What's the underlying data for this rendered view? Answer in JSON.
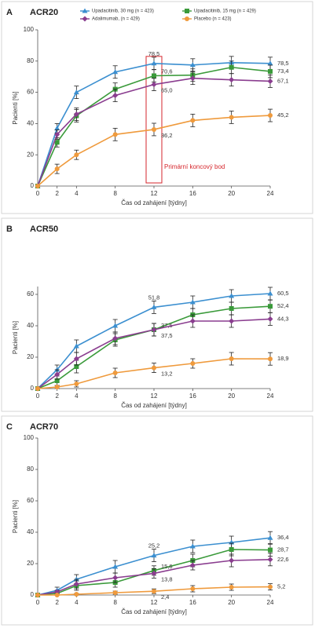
{
  "chart_data": [
    {
      "type": "line",
      "panel_label": "A",
      "title": "ACR20",
      "x_label": "Čas od zahájení [týdny]",
      "y_label": "Pacienti [%]",
      "annotation": "Primární koncový bod",
      "x": [
        0,
        2,
        4,
        8,
        12,
        16,
        20,
        24
      ],
      "xlim": [
        0,
        24
      ],
      "xticks": [
        0,
        2,
        4,
        8,
        12,
        16,
        20,
        24
      ],
      "ylim": [
        0,
        100
      ],
      "yticks": [
        0,
        20,
        40,
        60,
        80,
        100
      ],
      "series": [
        {
          "name": "Upadacitinib, 30 mg (n = 423)",
          "color": "#3b8fd0",
          "marker": "triangle",
          "values": [
            0,
            37,
            60,
            73,
            78.5,
            77.5,
            79,
            78.5
          ],
          "errors": [
            0,
            3,
            4,
            4,
            4,
            4,
            4,
            4
          ],
          "value_labels": [
            null,
            null,
            null,
            null,
            "78,5",
            null,
            null,
            "78,5"
          ]
        },
        {
          "name": "Upadacitinib, 15 mg (n = 429)",
          "color": "#3a9a3a",
          "marker": "square",
          "values": [
            0,
            28,
            45,
            62,
            70.6,
            71,
            76,
            73.4
          ],
          "errors": [
            0,
            3,
            4,
            4,
            4,
            4,
            4,
            4
          ],
          "value_labels": [
            null,
            null,
            null,
            null,
            "70,6",
            null,
            null,
            "73,4"
          ]
        },
        {
          "name": "Adalimumab, (n = 429)",
          "color": "#8a3d8f",
          "marker": "diamond",
          "values": [
            0,
            33,
            46,
            58,
            65.0,
            69,
            68,
            67.1
          ],
          "errors": [
            0,
            3,
            4,
            4,
            4,
            4,
            4,
            4
          ],
          "value_labels": [
            null,
            null,
            null,
            null,
            "65,0",
            null,
            null,
            "67,1"
          ]
        },
        {
          "name": "Placebo (n = 423)",
          "color": "#ef9a3c",
          "marker": "circle",
          "values": [
            0,
            11,
            20,
            33,
            36.2,
            42,
            44,
            45.2
          ],
          "errors": [
            0,
            3,
            3,
            4,
            4,
            4,
            4,
            4
          ],
          "value_labels": [
            null,
            null,
            null,
            null,
            "36,2",
            null,
            null,
            "45,2"
          ]
        }
      ]
    },
    {
      "type": "line",
      "panel_label": "B",
      "title": "ACR50",
      "x_label": "Čas od zahájení [týdny]",
      "y_label": "Pacienti [%]",
      "x": [
        0,
        2,
        4,
        8,
        12,
        16,
        20,
        24
      ],
      "xlim": [
        0,
        24
      ],
      "xticks": [
        0,
        2,
        4,
        8,
        12,
        16,
        20,
        24
      ],
      "ylim": [
        0,
        65
      ],
      "yticks": [
        0,
        20,
        40,
        60
      ],
      "series": [
        {
          "color": "#3b8fd0",
          "marker": "triangle",
          "values": [
            0,
            12,
            27,
            40,
            51.8,
            55,
            59,
            60.5
          ],
          "errors": [
            0,
            3,
            4,
            4,
            4,
            4,
            4,
            4
          ],
          "value_labels": [
            null,
            null,
            null,
            null,
            "51,8",
            null,
            null,
            "60,5"
          ]
        },
        {
          "color": "#3a9a3a",
          "marker": "square",
          "values": [
            0,
            5,
            14,
            31,
            37.5,
            47,
            51,
            52.4
          ],
          "errors": [
            0,
            3,
            4,
            4,
            4,
            4,
            4,
            4
          ],
          "value_labels": [
            null,
            null,
            null,
            null,
            "37,5",
            null,
            null,
            "52,4"
          ]
        },
        {
          "color": "#8a3d8f",
          "marker": "diamond",
          "values": [
            0,
            9,
            19,
            32,
            37.5,
            43,
            43,
            44.3
          ],
          "errors": [
            0,
            3,
            4,
            4,
            4,
            4,
            4,
            4
          ],
          "value_labels": [
            null,
            null,
            null,
            null,
            "37,5",
            null,
            null,
            "44,3"
          ]
        },
        {
          "color": "#ef9a3c",
          "marker": "circle",
          "values": [
            0,
            1,
            3,
            10,
            13.2,
            16,
            19,
            18.9
          ],
          "errors": [
            0,
            1,
            2,
            3,
            3,
            3,
            4,
            4
          ],
          "value_labels": [
            null,
            null,
            null,
            null,
            "13,2",
            null,
            null,
            "18,9"
          ]
        }
      ]
    },
    {
      "type": "line",
      "panel_label": "C",
      "title": "ACR70",
      "x_label": "Čas od zahájení [týdny]",
      "y_label": "Pacienti [%]",
      "x": [
        0,
        2,
        4,
        8,
        12,
        16,
        20,
        24
      ],
      "xlim": [
        0,
        24
      ],
      "xticks": [
        0,
        2,
        4,
        8,
        12,
        16,
        20,
        24
      ],
      "ylim": [
        0,
        100
      ],
      "yticks": [
        0,
        20,
        40,
        60,
        80,
        100
      ],
      "series": [
        {
          "color": "#3b8fd0",
          "marker": "triangle",
          "values": [
            0,
            3,
            10,
            18,
            25.2,
            31,
            33.5,
            36.4
          ],
          "errors": [
            0,
            2,
            3,
            4,
            4,
            4,
            4,
            4
          ],
          "value_labels": [
            null,
            null,
            null,
            null,
            "25,2",
            null,
            null,
            "36,4"
          ]
        },
        {
          "color": "#3a9a3a",
          "marker": "square",
          "values": [
            0,
            1,
            6,
            8,
            15.6,
            22,
            29,
            28.7
          ],
          "errors": [
            0,
            1,
            3,
            3,
            3,
            4,
            4,
            4
          ],
          "value_labels": [
            null,
            null,
            null,
            null,
            "15,6",
            null,
            null,
            "28,7"
          ]
        },
        {
          "color": "#8a3d8f",
          "marker": "diamond",
          "values": [
            0,
            2,
            7,
            11,
            13.8,
            19,
            22,
            22.6
          ],
          "errors": [
            0,
            1,
            3,
            3,
            3,
            3,
            4,
            4
          ],
          "value_labels": [
            null,
            null,
            null,
            null,
            "13,8",
            null,
            null,
            "22,6"
          ]
        },
        {
          "color": "#ef9a3c",
          "marker": "circle",
          "values": [
            0,
            0,
            0.5,
            1.5,
            2.4,
            4,
            5,
            5.2
          ],
          "errors": [
            0,
            0,
            0.5,
            1,
            1.5,
            2,
            2,
            2
          ],
          "value_labels": [
            null,
            null,
            null,
            null,
            "2,4",
            null,
            null,
            "5,2"
          ]
        }
      ]
    }
  ]
}
